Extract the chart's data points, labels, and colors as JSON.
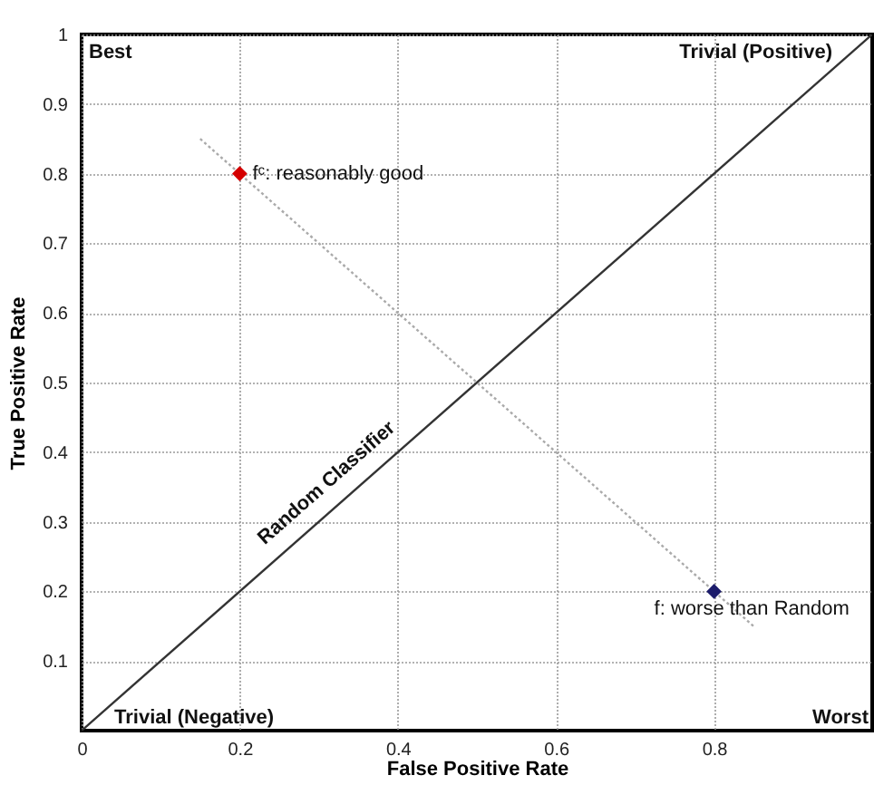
{
  "chart_data": {
    "type": "scatter",
    "xlabel": "False Positive Rate",
    "ylabel": "True Positive Rate",
    "xlim": [
      0,
      1
    ],
    "ylim": [
      0,
      1
    ],
    "xticks": [
      0,
      0.2,
      0.4,
      0.6,
      0.8
    ],
    "yticks": [
      0.1,
      0.2,
      0.3,
      0.4,
      0.5,
      0.6,
      0.7,
      0.8,
      0.9,
      1
    ],
    "grid": true,
    "series": [
      {
        "type": "line",
        "name": "Random Classifier",
        "color": "#333333",
        "x": [
          0,
          1
        ],
        "values": [
          0,
          1
        ],
        "line_style": "solid"
      },
      {
        "type": "line",
        "color": "#aaaaaa",
        "x": [
          0.15,
          0.85
        ],
        "values": [
          0.85,
          0.15
        ],
        "line_style": "dotted"
      },
      {
        "name": "fᶜ: reasonably good",
        "color": "#d40000",
        "marker": "diamond",
        "x": [
          0.2
        ],
        "values": [
          0.8
        ]
      },
      {
        "name": "f: worse than Random",
        "color": "#1c1c6b",
        "marker": "diamond",
        "x": [
          0.8
        ],
        "values": [
          0.2
        ]
      }
    ],
    "annotations": [
      "Best",
      "Trivial (Positive)",
      "Trivial (Negative)",
      "Worst"
    ]
  }
}
